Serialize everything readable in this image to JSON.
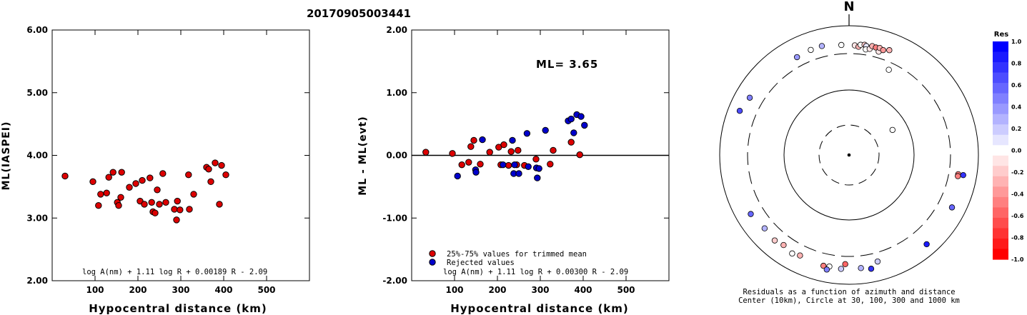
{
  "title": "20170905003441",
  "north_label": "N",
  "panel1": {
    "ylabel": "ML(IASPEI)",
    "xlabel": "Hypocentral distance (km)",
    "formula": "log A(nm) + 1.11 log R + 0.00189 R - 2.09",
    "yticks": [
      "2.00",
      "3.00",
      "4.00",
      "5.00",
      "6.00"
    ],
    "xticks": [
      "100",
      "200",
      "300",
      "400",
      "500"
    ]
  },
  "panel2": {
    "ylabel": "ML - ML(evt)",
    "xlabel": "Hypocentral distance (km)",
    "formula": "log A(nm) + 1.11 log R + 0.00300 R - 2.09",
    "ml_text": "ML= 3.65",
    "legend_trimmed": "25%-75% values for trimmed mean",
    "legend_rejected": "Rejected values",
    "yticks": [
      "-2.00",
      "-1.00",
      "0.00",
      "1.00",
      "2.00"
    ],
    "xticks": [
      "100",
      "200",
      "300",
      "400",
      "500"
    ]
  },
  "panel3": {
    "caption1": "Residuals as a function of azimuth and distance",
    "caption2": "Center (10km), Circle at 30, 100, 300 and 1000 km",
    "colorbar_title": "Res",
    "colorbar_ticks": [
      "1.0",
      "0.8",
      "0.6",
      "0.4",
      "0.2",
      "0.0",
      "-0.2",
      "-0.4",
      "-0.6",
      "-0.8",
      "-1.0"
    ]
  },
  "colors": {
    "trimmed": "#dd0000",
    "rejected": "#0000cc"
  },
  "chart_data": [
    {
      "type": "scatter",
      "title": "20170905003441",
      "xlabel": "Hypocentral distance (km)",
      "ylabel": "ML(IASPEI)",
      "xlim": [
        0,
        600
      ],
      "ylim": [
        2.0,
        6.0
      ],
      "annotation": "log A(nm) + 1.11 log R + 0.00189 R - 2.09",
      "series": [
        {
          "x": [
            30,
            95,
            108,
            113,
            127,
            132,
            142,
            152,
            155,
            160,
            162,
            180,
            195,
            205,
            210,
            215,
            228,
            232,
            235,
            240,
            245,
            250,
            258,
            265,
            285,
            290,
            292,
            298,
            318,
            320,
            330,
            360,
            365,
            370,
            380,
            390,
            395,
            405
          ],
          "y": [
            3.67,
            3.58,
            3.2,
            3.38,
            3.4,
            3.65,
            3.73,
            3.25,
            3.2,
            3.33,
            3.73,
            3.49,
            3.55,
            3.27,
            3.6,
            3.22,
            3.64,
            3.25,
            3.1,
            3.08,
            3.45,
            3.22,
            3.71,
            3.25,
            3.14,
            2.97,
            3.27,
            3.13,
            3.69,
            3.14,
            3.38,
            3.81,
            3.78,
            3.58,
            3.88,
            3.22,
            3.84,
            3.69
          ]
        }
      ]
    },
    {
      "type": "scatter",
      "xlabel": "Hypocentral distance (km)",
      "ylabel": "ML - ML(evt)",
      "xlim": [
        0,
        600
      ],
      "ylim": [
        -2.0,
        2.0
      ],
      "annotation": "log A(nm) + 1.11 log R + 0.00300 R - 2.09",
      "series": [
        {
          "name": "25%-75% values for trimmed mean",
          "x": [
            33,
            95,
            117,
            133,
            138,
            145,
            160,
            182,
            203,
            208,
            215,
            226,
            232,
            245,
            248,
            263,
            290,
            323,
            330,
            372,
            392
          ],
          "y": [
            0.05,
            0.03,
            -0.15,
            -0.11,
            0.14,
            0.24,
            -0.14,
            0.05,
            0.13,
            -0.15,
            0.17,
            -0.16,
            0.06,
            -0.15,
            0.08,
            -0.16,
            -0.06,
            -0.14,
            0.08,
            0.21,
            0.01
          ]
        },
        {
          "name": "Rejected values",
          "x": [
            107,
            149,
            150,
            165,
            213,
            235,
            238,
            240,
            250,
            269,
            272,
            291,
            293,
            297,
            312,
            365,
            372,
            378,
            385,
            395,
            403
          ],
          "y": [
            -0.33,
            -0.23,
            -0.27,
            0.25,
            -0.15,
            0.24,
            -0.29,
            -0.15,
            -0.29,
            0.35,
            -0.18,
            -0.2,
            -0.36,
            -0.21,
            0.4,
            0.55,
            0.58,
            0.36,
            0.65,
            0.62,
            0.48
          ]
        }
      ]
    },
    {
      "type": "scatter",
      "title": "Residuals as a function of azimuth and distance",
      "polar": true,
      "rings_km": [
        10,
        30,
        100,
        300,
        1000
      ],
      "points": [
        {
          "az": 340,
          "dist": 470,
          "res": 0.0
        },
        {
          "az": 332,
          "dist": 450,
          "res": 0.4
        },
        {
          "az": 346,
          "dist": 480,
          "res": 0.3
        },
        {
          "az": 356,
          "dist": 440,
          "res": 0.0
        },
        {
          "az": 3,
          "dist": 430,
          "res": -0.1
        },
        {
          "az": 5,
          "dist": 410,
          "res": -0.3
        },
        {
          "az": 6,
          "dist": 450,
          "res": 0.0
        },
        {
          "az": 8,
          "dist": 460,
          "res": -0.2
        },
        {
          "az": 9,
          "dist": 440,
          "res": 0.1
        },
        {
          "az": 9,
          "dist": 380,
          "res": 0.0
        },
        {
          "az": 11,
          "dist": 400,
          "res": -0.1
        },
        {
          "az": 12,
          "dist": 460,
          "res": -0.3
        },
        {
          "az": 14,
          "dist": 450,
          "res": -0.5
        },
        {
          "az": 16,
          "dist": 390,
          "res": -0.1
        },
        {
          "az": 16,
          "dist": 460,
          "res": -0.3
        },
        {
          "az": 18,
          "dist": 440,
          "res": -0.4
        },
        {
          "az": 21,
          "dist": 480,
          "res": -0.3
        },
        {
          "az": 25,
          "dist": 240,
          "res": 0.0
        },
        {
          "az": 300,
          "dist": 530,
          "res": 0.5
        },
        {
          "az": 292,
          "dist": 610,
          "res": 0.7
        },
        {
          "az": 60,
          "dist": 60,
          "res": 0.0
        },
        {
          "az": 100,
          "dist": 450,
          "res": -0.5
        },
        {
          "az": 101,
          "dist": 450,
          "res": -0.5
        },
        {
          "az": 100,
          "dist": 560,
          "res": 0.8
        },
        {
          "az": 117,
          "dist": 550,
          "res": 0.6
        },
        {
          "az": 139,
          "dist": 620,
          "res": 0.9
        },
        {
          "az": 182,
          "dist": 420,
          "res": -0.6
        },
        {
          "az": 165,
          "dist": 440,
          "res": 0.2
        },
        {
          "az": 174,
          "dist": 510,
          "res": 0.3
        },
        {
          "az": 169,
          "dist": 560,
          "res": 0.8
        },
        {
          "az": 184,
          "dist": 520,
          "res": 0.2
        },
        {
          "az": 190,
          "dist": 500,
          "res": 0.0
        },
        {
          "az": 193,
          "dist": 510,
          "res": -0.5
        },
        {
          "az": 191,
          "dist": 580,
          "res": 0.5
        },
        {
          "az": 206,
          "dist": 470,
          "res": -0.3
        },
        {
          "az": 210,
          "dist": 510,
          "res": 0.0
        },
        {
          "az": 216,
          "dist": 460,
          "res": -0.3
        },
        {
          "az": 221,
          "dist": 500,
          "res": -0.2
        },
        {
          "az": 229,
          "dist": 470,
          "res": 0.3
        },
        {
          "az": 239,
          "dist": 530,
          "res": 0.6
        }
      ]
    }
  ]
}
